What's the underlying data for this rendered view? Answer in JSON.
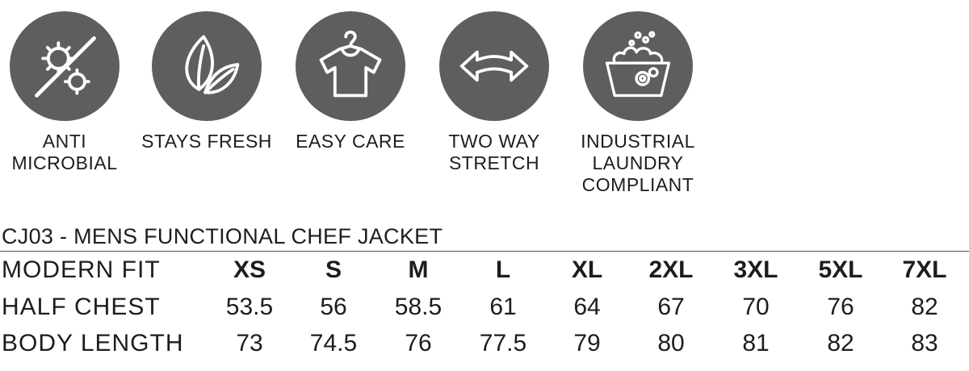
{
  "features": [
    {
      "icon": "anti-microbial-icon",
      "label": "ANTI MICROBIAL"
    },
    {
      "icon": "leaf-icon",
      "label": "STAYS FRESH"
    },
    {
      "icon": "tshirt-hanger-icon",
      "label": "EASY CARE"
    },
    {
      "icon": "double-arrow-icon",
      "label": "TWO WAY\nSTRETCH"
    },
    {
      "icon": "laundry-basin-icon",
      "label": "INDUSTRIAL\nLAUNDRY\nCOMPLIANT"
    }
  ],
  "table": {
    "title": "CJ03 - MENS FUNCTIONAL CHEF JACKET",
    "header_label": "MODERN FIT",
    "sizes": [
      "XS",
      "S",
      "M",
      "L",
      "XL",
      "2XL",
      "3XL",
      "5XL",
      "7XL"
    ],
    "rows": [
      {
        "label": "HALF CHEST",
        "values": [
          "53.5",
          "56",
          "58.5",
          "61",
          "64",
          "67",
          "70",
          "76",
          "82"
        ]
      },
      {
        "label": "BODY LENGTH",
        "values": [
          "73",
          "74.5",
          "76",
          "77.5",
          "79",
          "80",
          "81",
          "82",
          "83"
        ]
      }
    ]
  }
}
